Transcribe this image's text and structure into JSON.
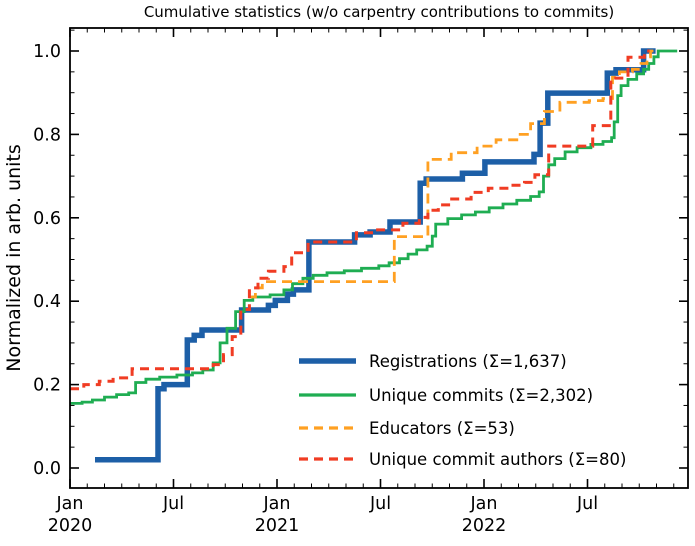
{
  "chart_data": {
    "type": "line",
    "title": "Cumulative statistics (w/o carpentry contributions to commits)",
    "xlabel": "",
    "ylabel": "Normalized in arb. units",
    "x_unit": "months since Jan 2020",
    "xlim": [
      0,
      35.83
    ],
    "ylim": [
      -0.048,
      1.055
    ],
    "grid": false,
    "tick_style": "in, mirrored on top and right spines",
    "x_major_ticks": [
      {
        "m": 0,
        "label": "Jan",
        "year": "2020"
      },
      {
        "m": 6,
        "label": "Jul",
        "year": ""
      },
      {
        "m": 12,
        "label": "Jan",
        "year": "2021"
      },
      {
        "m": 18,
        "label": "Jul",
        "year": ""
      },
      {
        "m": 24,
        "label": "Jan",
        "year": "2022"
      },
      {
        "m": 30,
        "label": "Jul",
        "year": ""
      }
    ],
    "x_minor_tick_every_months": 1,
    "y_major_ticks": [
      0.0,
      0.2,
      0.4,
      0.6,
      0.8,
      1.0
    ],
    "y_minor_tick_step": 0.05,
    "legend_position": "lower right inside plot, no frame",
    "series": [
      {
        "id": "registrations",
        "name": "Registrations",
        "total": "1,637",
        "legend_label": "Registrations  (Σ=1,637)",
        "color": "#1d5fa7",
        "line_width": 5.5,
        "dash": null,
        "step_points_month_value": [
          [
            1.45,
            0.02
          ],
          [
            5.1,
            0.19
          ],
          [
            5.45,
            0.2
          ],
          [
            6.8,
            0.307
          ],
          [
            7.2,
            0.318
          ],
          [
            7.65,
            0.331
          ],
          [
            9.95,
            0.379
          ],
          [
            11.5,
            0.39
          ],
          [
            11.9,
            0.402
          ],
          [
            12.6,
            0.417
          ],
          [
            12.95,
            0.427
          ],
          [
            13.85,
            0.542
          ],
          [
            16.5,
            0.559
          ],
          [
            17.4,
            0.566
          ],
          [
            18.55,
            0.59
          ],
          [
            20.3,
            0.683
          ],
          [
            20.65,
            0.693
          ],
          [
            22.75,
            0.707
          ],
          [
            24.05,
            0.734
          ],
          [
            26.9,
            0.752
          ],
          [
            27.25,
            0.827
          ],
          [
            27.7,
            0.899
          ],
          [
            31.15,
            0.947
          ],
          [
            31.65,
            0.955
          ],
          [
            33.25,
            1.0
          ],
          [
            33.95,
            1.0
          ]
        ]
      },
      {
        "id": "unique-commits",
        "name": "Unique commits",
        "total": "2,302",
        "legend_label": "Unique commits (Σ=2,302)",
        "color": "#1fad52",
        "line_width": 2.8,
        "dash": null,
        "step_points_month_value": [
          [
            0,
            0.155
          ],
          [
            0.7,
            0.158
          ],
          [
            1.3,
            0.163
          ],
          [
            2.0,
            0.17
          ],
          [
            2.7,
            0.176
          ],
          [
            3.4,
            0.18
          ],
          [
            3.8,
            0.205
          ],
          [
            4.4,
            0.213
          ],
          [
            5.2,
            0.218
          ],
          [
            6.2,
            0.223
          ],
          [
            7.1,
            0.228
          ],
          [
            7.7,
            0.235
          ],
          [
            8.3,
            0.252
          ],
          [
            8.7,
            0.3
          ],
          [
            9.1,
            0.335
          ],
          [
            9.6,
            0.375
          ],
          [
            10.1,
            0.402
          ],
          [
            10.6,
            0.41
          ],
          [
            11.6,
            0.415
          ],
          [
            12.4,
            0.427
          ],
          [
            12.9,
            0.442
          ],
          [
            13.5,
            0.455
          ],
          [
            14.1,
            0.462
          ],
          [
            14.9,
            0.468
          ],
          [
            15.9,
            0.473
          ],
          [
            16.9,
            0.479
          ],
          [
            17.9,
            0.485
          ],
          [
            18.5,
            0.492
          ],
          [
            19.1,
            0.502
          ],
          [
            19.6,
            0.513
          ],
          [
            20.1,
            0.523
          ],
          [
            20.7,
            0.532
          ],
          [
            21.0,
            0.556
          ],
          [
            21.2,
            0.585
          ],
          [
            21.9,
            0.598
          ],
          [
            22.7,
            0.607
          ],
          [
            23.5,
            0.614
          ],
          [
            24.3,
            0.624
          ],
          [
            25.1,
            0.633
          ],
          [
            25.9,
            0.642
          ],
          [
            26.7,
            0.651
          ],
          [
            27.2,
            0.662
          ],
          [
            27.45,
            0.7
          ],
          [
            27.75,
            0.727
          ],
          [
            28.1,
            0.742
          ],
          [
            28.7,
            0.758
          ],
          [
            29.4,
            0.768
          ],
          [
            30.2,
            0.776
          ],
          [
            30.9,
            0.783
          ],
          [
            31.4,
            0.792
          ],
          [
            31.55,
            0.83
          ],
          [
            31.75,
            0.893
          ],
          [
            31.95,
            0.917
          ],
          [
            32.35,
            0.932
          ],
          [
            32.85,
            0.945
          ],
          [
            33.25,
            0.956
          ],
          [
            33.55,
            0.97
          ],
          [
            33.85,
            0.986
          ],
          [
            34.1,
            1.0
          ],
          [
            35.2,
            1.0
          ]
        ]
      },
      {
        "id": "educators",
        "name": "Educators",
        "total": "53",
        "legend_label": "Educators (Σ=53)",
        "color": "#ffa022",
        "line_width": 2.8,
        "dash": "10 6",
        "step_points_month_value": [
          [
            10.4,
            0.41
          ],
          [
            10.75,
            0.432
          ],
          [
            11.15,
            0.447
          ],
          [
            18.8,
            0.555
          ],
          [
            20.75,
            0.74
          ],
          [
            22.1,
            0.756
          ],
          [
            23.6,
            0.772
          ],
          [
            24.7,
            0.787
          ],
          [
            25.9,
            0.8
          ],
          [
            26.7,
            0.826
          ],
          [
            27.5,
            0.855
          ],
          [
            28.4,
            0.877
          ],
          [
            30.1,
            0.881
          ],
          [
            30.9,
            0.886
          ],
          [
            31.45,
            0.937
          ],
          [
            31.85,
            0.95
          ],
          [
            32.6,
            0.956
          ],
          [
            33.1,
            0.97
          ],
          [
            33.45,
            0.986
          ],
          [
            33.65,
            1.0
          ],
          [
            33.85,
            1.0
          ]
        ]
      },
      {
        "id": "unique-commit-authors",
        "name": "Unique commit authors",
        "total": "80",
        "legend_label": "Unique commit authors (Σ=80)",
        "color": "#f03c23",
        "line_width": 3.0,
        "dash": "9 6",
        "step_points_month_value": [
          [
            0,
            0.19
          ],
          [
            0.8,
            0.2
          ],
          [
            1.7,
            0.208
          ],
          [
            2.5,
            0.216
          ],
          [
            3.6,
            0.238
          ],
          [
            8.3,
            0.248
          ],
          [
            8.9,
            0.272
          ],
          [
            9.4,
            0.315
          ],
          [
            9.9,
            0.38
          ],
          [
            10.4,
            0.432
          ],
          [
            10.9,
            0.455
          ],
          [
            11.5,
            0.472
          ],
          [
            12.4,
            0.483
          ],
          [
            12.85,
            0.516
          ],
          [
            13.8,
            0.542
          ],
          [
            16.6,
            0.564
          ],
          [
            17.7,
            0.571
          ],
          [
            19.3,
            0.587
          ],
          [
            20.25,
            0.601
          ],
          [
            20.75,
            0.618
          ],
          [
            21.35,
            0.631
          ],
          [
            21.95,
            0.645
          ],
          [
            23.25,
            0.661
          ],
          [
            24.25,
            0.671
          ],
          [
            25.45,
            0.678
          ],
          [
            26.35,
            0.685
          ],
          [
            26.95,
            0.703
          ],
          [
            27.75,
            0.772
          ],
          [
            30.3,
            0.821
          ],
          [
            31.35,
            0.935
          ],
          [
            32.35,
            0.985
          ],
          [
            33.3,
            1.0
          ],
          [
            33.6,
            1.0
          ]
        ]
      }
    ]
  }
}
